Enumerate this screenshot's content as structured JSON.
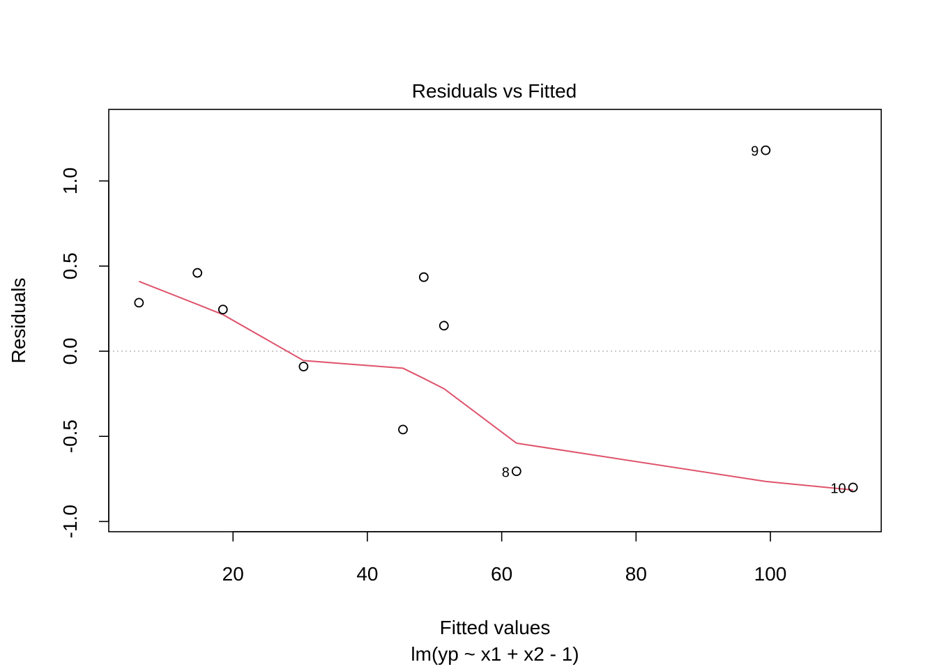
{
  "chart_data": {
    "type": "scatter",
    "title": "Residuals vs Fitted",
    "xlabel": "Fitted values",
    "subtitle": "lm(yp ~ x1 + x2 - 1)",
    "ylabel": "Residuals",
    "xlim": [
      1.5,
      116.5
    ],
    "ylim": [
      -1.06,
      1.42
    ],
    "x_ticks": [
      20,
      40,
      60,
      80,
      100
    ],
    "x_tick_labels": [
      "20",
      "40",
      "60",
      "80",
      "100"
    ],
    "y_ticks": [
      -1.0,
      -0.5,
      0.0,
      0.5,
      1.0
    ],
    "y_tick_labels": [
      "-1.0",
      "-0.5",
      "0.0",
      "0.5",
      "1.0"
    ],
    "grid": false,
    "reference_line": {
      "y": 0.0,
      "style": "dotted",
      "color": "#bebebe"
    },
    "points": [
      {
        "x": 6.0,
        "y": 0.285,
        "label": ""
      },
      {
        "x": 14.7,
        "y": 0.46,
        "label": ""
      },
      {
        "x": 18.5,
        "y": 0.245,
        "label": ""
      },
      {
        "x": 30.5,
        "y": -0.09,
        "label": ""
      },
      {
        "x": 45.3,
        "y": -0.46,
        "label": ""
      },
      {
        "x": 48.4,
        "y": 0.435,
        "label": ""
      },
      {
        "x": 51.4,
        "y": 0.15,
        "label": ""
      },
      {
        "x": 62.2,
        "y": -0.705,
        "label": "8"
      },
      {
        "x": 99.3,
        "y": 1.18,
        "label": "9"
      },
      {
        "x": 112.3,
        "y": -0.8,
        "label": "10"
      }
    ],
    "smooth_line": {
      "color": "#df536b",
      "x": [
        6.0,
        14.7,
        18.5,
        30.5,
        45.3,
        48.4,
        51.4,
        62.2,
        99.3,
        112.3
      ],
      "y": [
        0.41,
        0.275,
        0.215,
        -0.055,
        -0.1,
        -0.16,
        -0.22,
        -0.54,
        -0.765,
        -0.815
      ]
    }
  }
}
